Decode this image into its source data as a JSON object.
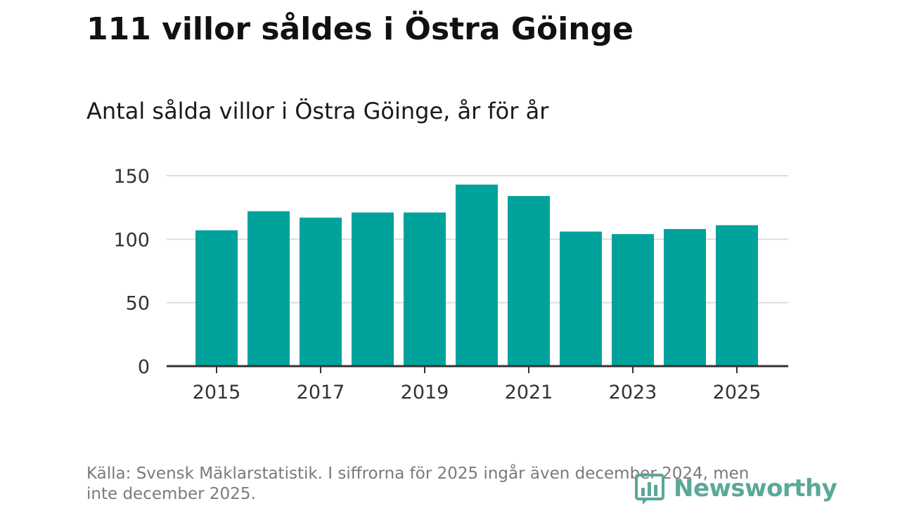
{
  "title": "111 villor såldes i Östra Göinge",
  "subtitle": "Antal sålda villor i Östra Göinge, år för år",
  "source": "Källa: Svensk Mäklarstatistik. I siffrorna för 2025 ingår även december 2024, men inte december 2025.",
  "brand": "Newsworthy",
  "colors": {
    "bar": "#00a39b",
    "grid": "#dddddd",
    "axis": "#333333",
    "brand": "#5aa89a"
  },
  "chart_data": {
    "type": "bar",
    "categories": [
      "2015",
      "2016",
      "2017",
      "2018",
      "2019",
      "2020",
      "2021",
      "2022",
      "2023",
      "2024",
      "2025"
    ],
    "values": [
      107,
      122,
      117,
      121,
      121,
      143,
      134,
      106,
      104,
      108,
      111
    ],
    "xtick_labels": [
      "2015",
      "2017",
      "2019",
      "2021",
      "2023",
      "2025"
    ],
    "yticks": [
      0,
      50,
      100,
      150
    ],
    "ylim": [
      0,
      150
    ],
    "grid": true
  }
}
